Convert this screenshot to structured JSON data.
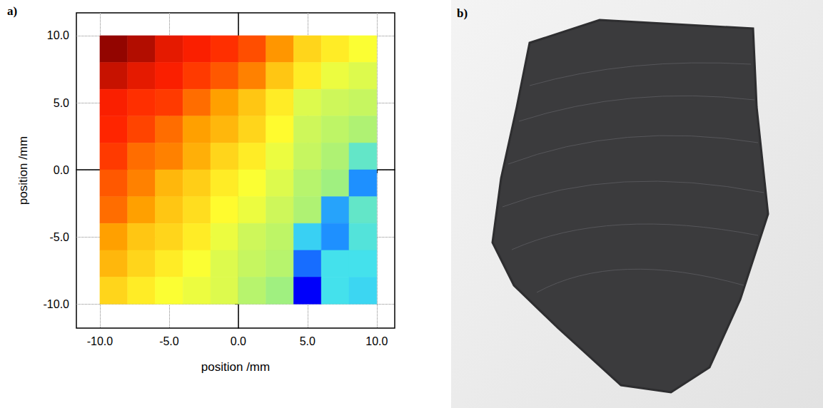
{
  "chart_data": {
    "type": "heatmap",
    "panel_label": "a)",
    "x_label": "position /mm",
    "y_label": "position /mm",
    "xlim": [
      -11.7,
      11.3
    ],
    "ylim": [
      -11.8,
      11.7
    ],
    "xticks": [
      {
        "value": -10,
        "label": "-10.0"
      },
      {
        "value": -5,
        "label": "-5.0"
      },
      {
        "value": 0,
        "label": "0.0"
      },
      {
        "value": 5,
        "label": "5.0"
      },
      {
        "value": 10,
        "label": "10.0"
      }
    ],
    "yticks": [
      {
        "value": -10,
        "label": "-10.0"
      },
      {
        "value": -5,
        "label": "-5.0"
      },
      {
        "value": 0,
        "label": "0.0"
      },
      {
        "value": 5,
        "label": "5.0"
      },
      {
        "value": 10,
        "label": "10.0"
      }
    ],
    "grid": true,
    "cell_size": 2,
    "value_range": [
      0,
      10
    ],
    "cells": {
      "x": [
        -9,
        -7,
        -5,
        -3,
        -1,
        1,
        3,
        5,
        7,
        9
      ],
      "y": [
        9,
        7,
        5,
        3,
        1,
        -1,
        -3,
        -5,
        -7,
        -9
      ],
      "values": [
        [
          9.8,
          9.5,
          9.0,
          8.8,
          8.6,
          8.3,
          7.6,
          6.8,
          6.5,
          6.2
        ],
        [
          9.3,
          9.0,
          8.8,
          8.5,
          8.2,
          7.8,
          7.0,
          6.5,
          6.0,
          5.8
        ],
        [
          8.8,
          8.6,
          8.5,
          8.0,
          7.5,
          7.0,
          6.5,
          5.8,
          5.6,
          5.5
        ],
        [
          8.7,
          8.4,
          8.0,
          7.5,
          7.2,
          6.8,
          6.3,
          5.6,
          5.4,
          5.2
        ],
        [
          8.5,
          8.0,
          7.8,
          7.3,
          6.8,
          6.5,
          6.0,
          5.5,
          5.2,
          4.2
        ],
        [
          8.2,
          7.8,
          7.2,
          6.9,
          6.5,
          6.2,
          5.8,
          5.3,
          5.0,
          2.5
        ],
        [
          8.0,
          7.5,
          7.0,
          6.7,
          6.3,
          6.0,
          5.6,
          5.2,
          2.8,
          4.2
        ],
        [
          7.5,
          7.0,
          6.8,
          6.5,
          6.0,
          5.6,
          5.4,
          3.5,
          2.5,
          4.0
        ],
        [
          7.2,
          6.8,
          6.5,
          6.2,
          5.8,
          5.5,
          5.3,
          2.2,
          3.8,
          3.8
        ],
        [
          6.8,
          6.5,
          6.2,
          6.0,
          5.8,
          5.3,
          5.0,
          1.2,
          3.8,
          3.6
        ]
      ]
    }
  },
  "photo": {
    "panel_label": "b)"
  }
}
